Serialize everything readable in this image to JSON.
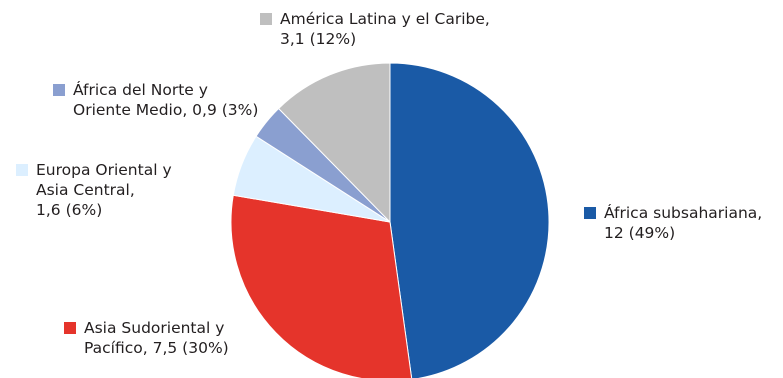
{
  "chart_data": {
    "type": "pie",
    "title": "",
    "slices": [
      {
        "label_lines": [
          "África subsahariana,",
          "12 (49%)"
        ],
        "value": 12,
        "percent": 49,
        "color": "#1a5aa6"
      },
      {
        "label_lines": [
          "Asia Sudoriental y",
          "Pacífico, 7,5 (30%)"
        ],
        "value": 7.5,
        "percent": 30,
        "color": "#e5342b"
      },
      {
        "label_lines": [
          "Europa Oriental y",
          "Asia Central,",
          "1,6 (6%)"
        ],
        "value": 1.6,
        "percent": 6,
        "color": "#dcefff"
      },
      {
        "label_lines": [
          "África del Norte y",
          "Oriente Medio, 0,9 (3%)"
        ],
        "value": 0.9,
        "percent": 3,
        "color": "#8a9fd0"
      },
      {
        "label_lines": [
          "América Latina y el Caribe,",
          "3,1 (12%)"
        ],
        "value": 3.1,
        "percent": 12,
        "color": "#bfbfbf"
      }
    ]
  }
}
